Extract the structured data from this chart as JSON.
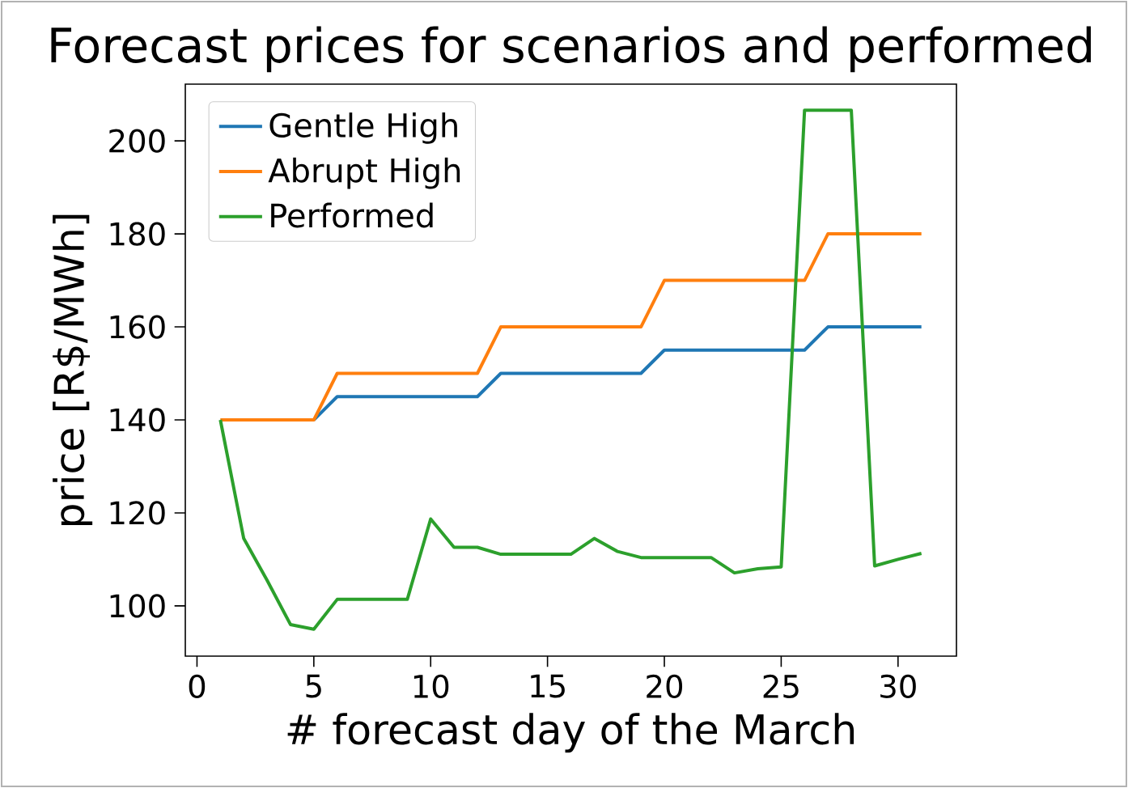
{
  "chart_data": {
    "type": "line",
    "title": "Forecast prices for scenarios and performed",
    "xlabel": "# forecast day of the March",
    "ylabel": "price [R$/MWh]",
    "x": [
      1,
      2,
      3,
      4,
      5,
      6,
      7,
      8,
      9,
      10,
      11,
      12,
      13,
      14,
      15,
      16,
      17,
      18,
      19,
      20,
      21,
      22,
      23,
      24,
      25,
      26,
      27,
      28,
      29,
      30,
      31
    ],
    "series": [
      {
        "name": "Gentle High",
        "color": "#1f77b4",
        "values": [
          null,
          null,
          null,
          null,
          140,
          145,
          145,
          145,
          145,
          145,
          145,
          145,
          150,
          150,
          150,
          150,
          150,
          150,
          150,
          155,
          155,
          155,
          155,
          155,
          155,
          155,
          160,
          160,
          160,
          160,
          160
        ]
      },
      {
        "name": "Abrupt High",
        "color": "#ff7f0e",
        "values": [
          140,
          140,
          140,
          140,
          140,
          150,
          150,
          150,
          150,
          150,
          150,
          150,
          160,
          160,
          160,
          160,
          160,
          160,
          160,
          170,
          170,
          170,
          170,
          170,
          170,
          170,
          180,
          180,
          180,
          180,
          180
        ]
      },
      {
        "name": "Performed",
        "color": "#2ca02c",
        "values": [
          140,
          114.5,
          105.5,
          96,
          95,
          101.4,
          101.4,
          101.4,
          101.4,
          118.7,
          112.6,
          112.6,
          111.1,
          111.1,
          111.1,
          111.1,
          114.5,
          111.7,
          110.4,
          110.4,
          110.4,
          110.4,
          107.1,
          108,
          108.4,
          206.6,
          206.6,
          206.6,
          108.6,
          110,
          111.3
        ]
      }
    ],
    "xlim": [
      -0.5,
      32.5
    ],
    "ylim": [
      89.2,
      212.2
    ],
    "xticks": [
      0,
      5,
      10,
      15,
      20,
      25,
      30
    ],
    "yticks": [
      100,
      120,
      140,
      160,
      180,
      200
    ],
    "legend": "top left",
    "marker": "none",
    "line_style": "solid",
    "grid": false
  }
}
